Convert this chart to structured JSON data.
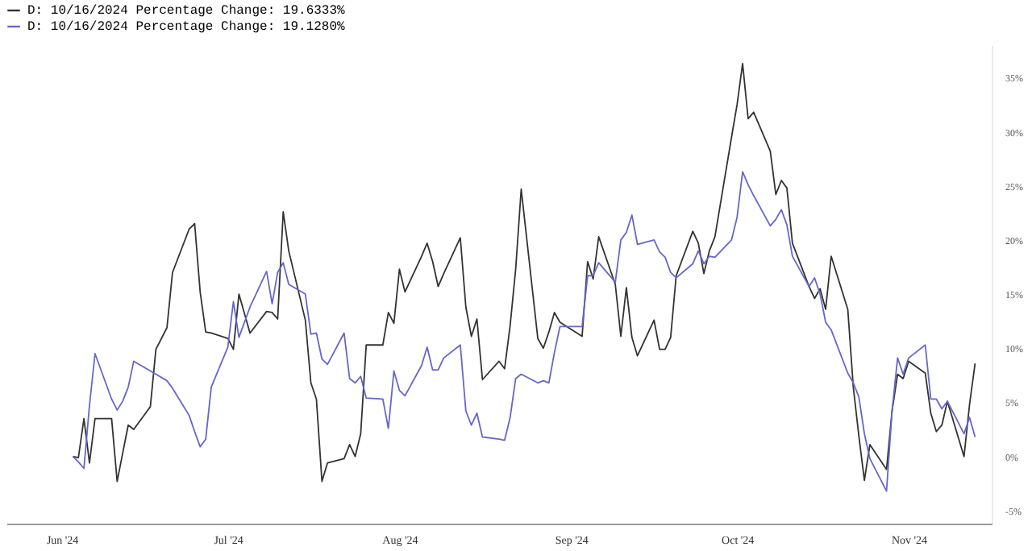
{
  "chart_data": {
    "type": "line",
    "x": [
      "2024-06-03",
      "2024-06-04",
      "2024-06-05",
      "2024-06-06",
      "2024-06-07",
      "2024-06-10",
      "2024-06-11",
      "2024-06-12",
      "2024-06-13",
      "2024-06-14",
      "2024-06-17",
      "2024-06-18",
      "2024-06-20",
      "2024-06-21",
      "2024-06-24",
      "2024-06-25",
      "2024-06-26",
      "2024-06-27",
      "2024-06-28",
      "2024-07-01",
      "2024-07-02",
      "2024-07-03",
      "2024-07-05",
      "2024-07-08",
      "2024-07-09",
      "2024-07-10",
      "2024-07-11",
      "2024-07-12",
      "2024-07-15",
      "2024-07-16",
      "2024-07-17",
      "2024-07-18",
      "2024-07-19",
      "2024-07-22",
      "2024-07-23",
      "2024-07-24",
      "2024-07-25",
      "2024-07-26",
      "2024-07-29",
      "2024-07-30",
      "2024-07-31",
      "2024-08-01",
      "2024-08-02",
      "2024-08-05",
      "2024-08-06",
      "2024-08-07",
      "2024-08-08",
      "2024-08-09",
      "2024-08-12",
      "2024-08-13",
      "2024-08-14",
      "2024-08-15",
      "2024-08-16",
      "2024-08-19",
      "2024-08-20",
      "2024-08-21",
      "2024-08-22",
      "2024-08-23",
      "2024-08-26",
      "2024-08-27",
      "2024-08-28",
      "2024-08-29",
      "2024-08-30",
      "2024-09-03",
      "2024-09-04",
      "2024-09-05",
      "2024-09-06",
      "2024-09-09",
      "2024-09-10",
      "2024-09-11",
      "2024-09-12",
      "2024-09-13",
      "2024-09-16",
      "2024-09-17",
      "2024-09-18",
      "2024-09-19",
      "2024-09-20",
      "2024-09-23",
      "2024-09-24",
      "2024-09-25",
      "2024-09-26",
      "2024-09-27",
      "2024-09-30",
      "2024-10-01",
      "2024-10-02",
      "2024-10-03",
      "2024-10-04",
      "2024-10-07",
      "2024-10-08",
      "2024-10-09",
      "2024-10-10",
      "2024-10-11",
      "2024-10-14",
      "2024-10-15",
      "2024-10-16",
      "2024-10-17",
      "2024-10-18",
      "2024-10-21",
      "2024-10-22",
      "2024-10-23",
      "2024-10-24",
      "2024-10-25",
      "2024-10-28",
      "2024-10-29",
      "2024-10-30",
      "2024-10-31",
      "2024-11-01",
      "2024-11-04",
      "2024-11-05",
      "2024-11-06",
      "2024-11-07",
      "2024-11-08",
      "2024-11-11",
      "2024-11-12",
      "2024-11-13"
    ],
    "series": [
      {
        "name": "D: 10/16/2024 Percentage Change: 19.6333%",
        "color": "#333333",
        "values": [
          0.0,
          -0.1,
          3.5,
          -0.6,
          3.5,
          3.5,
          -2.3,
          0.3,
          2.9,
          2.5,
          4.6,
          9.9,
          11.9,
          17.0,
          21.0,
          21.5,
          15.2,
          11.5,
          11.4,
          10.9,
          9.9,
          15.0,
          11.4,
          13.4,
          13.3,
          12.7,
          22.6,
          19.0,
          12.6,
          6.8,
          5.3,
          -2.3,
          -0.6,
          -0.2,
          1.1,
          0.0,
          2.1,
          10.3,
          10.3,
          13.3,
          12.3,
          17.3,
          15.2,
          18.5,
          19.7,
          18.0,
          15.7,
          16.9,
          20.2,
          13.8,
          11.1,
          12.7,
          7.1,
          8.8,
          8.1,
          12.1,
          17.3,
          24.7,
          10.9,
          10.0,
          11.5,
          13.3,
          12.4,
          11.1,
          18.0,
          16.4,
          20.3,
          15.9,
          11.1,
          15.6,
          11.0,
          9.3,
          12.6,
          9.9,
          9.9,
          11.0,
          16.7,
          20.8,
          19.7,
          16.9,
          19.0,
          20.3,
          29.5,
          32.5,
          36.3,
          31.2,
          31.8,
          28.2,
          24.2,
          25.5,
          24.8,
          19.7,
          15.7,
          14.6,
          15.5,
          13.6,
          18.5,
          13.6,
          6.4,
          1.9,
          -2.2,
          1.1,
          -1.2,
          4.2,
          7.6,
          7.2,
          8.8,
          7.7,
          4.0,
          2.3,
          2.9,
          5.1,
          0.0,
          4.8,
          8.6
        ]
      },
      {
        "name": "D: 10/16/2024 Percentage Change: 19.1280%",
        "color": "#6666cc",
        "values": [
          0.0,
          -0.5,
          -1.1,
          4.7,
          9.5,
          5.3,
          4.3,
          5.1,
          6.4,
          8.8,
          7.9,
          7.6,
          7.0,
          6.3,
          3.8,
          2.3,
          0.9,
          1.6,
          6.4,
          10.1,
          14.3,
          11.0,
          13.8,
          17.1,
          14.1,
          17.0,
          17.9,
          15.9,
          15.0,
          11.3,
          11.4,
          9.0,
          8.5,
          11.4,
          7.2,
          6.8,
          7.4,
          5.4,
          5.3,
          2.6,
          7.9,
          6.1,
          5.6,
          8.4,
          10.1,
          8.0,
          8.0,
          9.1,
          10.3,
          4.2,
          2.9,
          4.0,
          1.8,
          1.6,
          1.5,
          3.6,
          7.2,
          7.6,
          6.8,
          7.0,
          6.8,
          9.6,
          12.0,
          12.0,
          16.7,
          16.7,
          17.9,
          16.1,
          20.0,
          20.7,
          22.3,
          19.6,
          20.0,
          18.9,
          18.4,
          17.0,
          16.5,
          17.8,
          19.0,
          17.8,
          18.5,
          18.4,
          20.0,
          22.1,
          26.3,
          25.1,
          24.1,
          21.3,
          21.9,
          22.8,
          21.4,
          18.5,
          15.7,
          16.5,
          15.0,
          12.4,
          11.7,
          7.7,
          6.8,
          5.5,
          2.1,
          -0.2,
          -3.2,
          4.2,
          9.1,
          7.6,
          9.1,
          10.3,
          5.3,
          5.3,
          4.4,
          5.1,
          2.1,
          3.6,
          1.8
        ]
      }
    ],
    "xlim": [
      "2024-05-22",
      "2024-11-16"
    ],
    "xticks": [
      {
        "value": "2024-06-01",
        "label": "Jun '24"
      },
      {
        "value": "2024-07-01",
        "label": "Jul '24"
      },
      {
        "value": "2024-08-01",
        "label": "Aug '24"
      },
      {
        "value": "2024-09-01",
        "label": "Sep '24"
      },
      {
        "value": "2024-10-01",
        "label": "Oct '24"
      },
      {
        "value": "2024-11-01",
        "label": "Nov '24"
      }
    ],
    "ylim": [
      -6.2,
      38
    ],
    "yticks": [
      {
        "value": -5,
        "label": "-5%"
      },
      {
        "value": 0,
        "label": "0%"
      },
      {
        "value": 5,
        "label": "5%"
      },
      {
        "value": 10,
        "label": "10%"
      },
      {
        "value": 15,
        "label": "15%"
      },
      {
        "value": 20,
        "label": "20%"
      },
      {
        "value": 25,
        "label": "25%"
      },
      {
        "value": 30,
        "label": "30%"
      },
      {
        "value": 35,
        "label": "35%"
      }
    ],
    "grid": false,
    "legend": "top left"
  }
}
